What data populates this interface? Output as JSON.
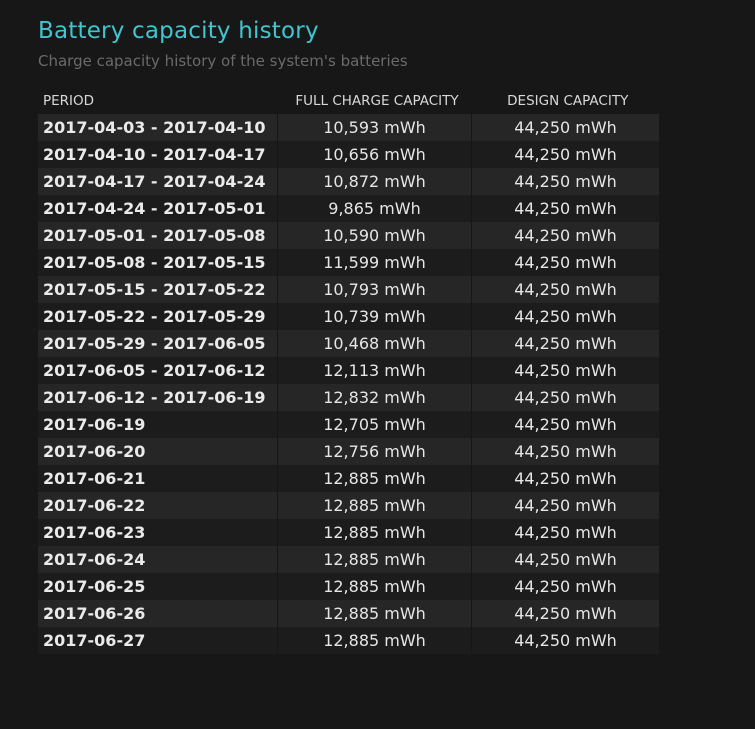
{
  "header": {
    "title": "Battery capacity history",
    "subtitle": "Charge capacity history of the system's batteries"
  },
  "table": {
    "columns": [
      "PERIOD",
      "FULL CHARGE CAPACITY",
      "DESIGN CAPACITY"
    ],
    "rows": [
      [
        "2017-04-03 - 2017-04-10",
        "10,593 mWh",
        "44,250 mWh"
      ],
      [
        "2017-04-10 - 2017-04-17",
        "10,656 mWh",
        "44,250 mWh"
      ],
      [
        "2017-04-17 - 2017-04-24",
        "10,872 mWh",
        "44,250 mWh"
      ],
      [
        "2017-04-24 - 2017-05-01",
        "9,865 mWh",
        "44,250 mWh"
      ],
      [
        "2017-05-01 - 2017-05-08",
        "10,590 mWh",
        "44,250 mWh"
      ],
      [
        "2017-05-08 - 2017-05-15",
        "11,599 mWh",
        "44,250 mWh"
      ],
      [
        "2017-05-15 - 2017-05-22",
        "10,793 mWh",
        "44,250 mWh"
      ],
      [
        "2017-05-22 - 2017-05-29",
        "10,739 mWh",
        "44,250 mWh"
      ],
      [
        "2017-05-29 - 2017-06-05",
        "10,468 mWh",
        "44,250 mWh"
      ],
      [
        "2017-06-05 - 2017-06-12",
        "12,113 mWh",
        "44,250 mWh"
      ],
      [
        "2017-06-12 - 2017-06-19",
        "12,832 mWh",
        "44,250 mWh"
      ],
      [
        "2017-06-19",
        "12,705 mWh",
        "44,250 mWh"
      ],
      [
        "2017-06-20",
        "12,756 mWh",
        "44,250 mWh"
      ],
      [
        "2017-06-21",
        "12,885 mWh",
        "44,250 mWh"
      ],
      [
        "2017-06-22",
        "12,885 mWh",
        "44,250 mWh"
      ],
      [
        "2017-06-23",
        "12,885 mWh",
        "44,250 mWh"
      ],
      [
        "2017-06-24",
        "12,885 mWh",
        "44,250 mWh"
      ],
      [
        "2017-06-25",
        "12,885 mWh",
        "44,250 mWh"
      ],
      [
        "2017-06-26",
        "12,885 mWh",
        "44,250 mWh"
      ],
      [
        "2017-06-27",
        "12,885 mWh",
        "44,250 mWh"
      ]
    ]
  }
}
